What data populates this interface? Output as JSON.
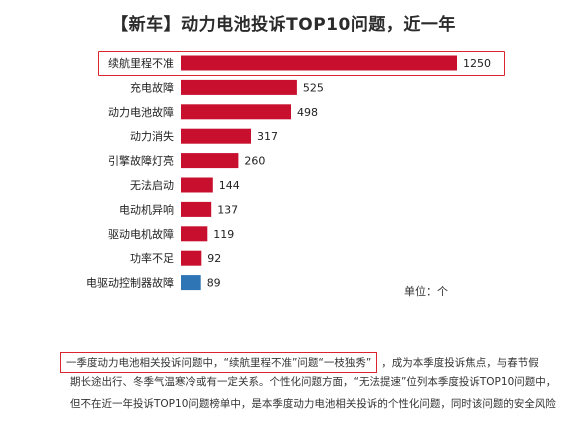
{
  "title": "【新车】动力电池投诉TOP10问题，近一年",
  "unit_label": "单位：个",
  "colors": {
    "bar": "#c8102e",
    "last_bar": "#2e75b6",
    "highlight": "#d9262d"
  },
  "chart_data": {
    "type": "bar",
    "orientation": "horizontal",
    "title": "【新车】动力电池投诉TOP10问题，近一年",
    "categories": [
      "续航里程不准",
      "充电故障",
      "动力电池故障",
      "动力消失",
      "引擎故障灯亮",
      "无法启动",
      "电动机异响",
      "驱动电机故障",
      "功率不足",
      "电驱动控制器故障"
    ],
    "values": [
      1250,
      525,
      498,
      317,
      260,
      144,
      137,
      119,
      92,
      89
    ],
    "highlighted_category": "续航里程不准",
    "xlim": [
      0,
      1250
    ],
    "grid": false
  },
  "paragraph": {
    "line1_boxed": "一季度动力电池相关投诉问题中，“续航里程不准”问题“一枝独秀”",
    "line1_rest": "，成为本季度投诉焦点，与春节假",
    "line2": "期长途出行、冬季气温寒冷或有一定关系。个性化问题方面，“无法提速”位列本季度投诉TOP10问题中，",
    "line3": "但不在近一年投诉TOP10问题榜单中，是本季度动力电池相关投诉的个性化问题，同时该问题的安全风险"
  }
}
